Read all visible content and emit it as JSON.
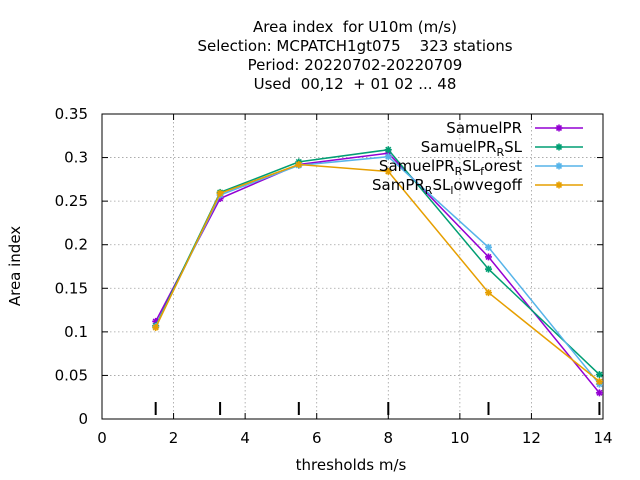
{
  "chart_data": {
    "type": "line",
    "title_lines": [
      "Area index  for U10m (m/s)",
      "Selection: MCPATCH1gt075    323 stations",
      "Period: 20220702-20220709",
      "Used  00,12  + 01 02 ... 48"
    ],
    "xlabel": "thresholds m/s",
    "ylabel": "Area index",
    "xlim": [
      0,
      14
    ],
    "ylim": [
      0,
      0.35
    ],
    "xticks": [
      0,
      2,
      4,
      6,
      8,
      10,
      12,
      14
    ],
    "yticks": [
      0,
      0.05,
      0.1,
      0.15,
      0.2,
      0.25,
      0.3,
      0.35
    ],
    "xtick_labels": [
      "0",
      "2",
      "4",
      "6",
      "8",
      "10",
      "12",
      "14"
    ],
    "ytick_labels": [
      "0",
      "0.05",
      "0.1",
      "0.15",
      "0.2",
      "0.25",
      "0.3",
      "0.35"
    ],
    "grid": true,
    "legend_position": "top-right",
    "threshold_markers": [
      1.5,
      3.3,
      5.5,
      8.0,
      10.8,
      13.9
    ],
    "series": [
      {
        "name": "SamuelPR",
        "legend_parts": [
          [
            "SamuelPR",
            ""
          ]
        ],
        "color": "#9400d3",
        "x": [
          1.5,
          3.3,
          5.5,
          8.0,
          10.8,
          13.9
        ],
        "y": [
          0.112,
          0.253,
          0.292,
          0.305,
          0.186,
          0.03
        ]
      },
      {
        "name": "SamuelPR_RSL",
        "legend_parts": [
          [
            "SamuelPR",
            ""
          ],
          [
            "R",
            "sub"
          ],
          [
            "SL",
            ""
          ]
        ],
        "color": "#009e73",
        "x": [
          1.5,
          3.3,
          5.5,
          8.0,
          10.8,
          13.9
        ],
        "y": [
          0.107,
          0.26,
          0.295,
          0.309,
          0.172,
          0.051
        ]
      },
      {
        "name": "SamuelPR_RSL_forest",
        "legend_parts": [
          [
            "SamuelPR",
            ""
          ],
          [
            "R",
            "sub"
          ],
          [
            "SL",
            ""
          ],
          [
            "f",
            "sub"
          ],
          [
            "orest",
            ""
          ]
        ],
        "color": "#56b4e9",
        "x": [
          1.5,
          3.3,
          5.5,
          8.0,
          10.8,
          13.9
        ],
        "y": [
          0.106,
          0.257,
          0.291,
          0.301,
          0.197,
          0.04
        ]
      },
      {
        "name": "SamPR_RSL_lowvegoff",
        "legend_parts": [
          [
            "SamPR",
            ""
          ],
          [
            "R",
            "sub"
          ],
          [
            "SL",
            ""
          ],
          [
            "l",
            "sub"
          ],
          [
            "owvegoff",
            ""
          ]
        ],
        "color": "#e69f00",
        "x": [
          1.5,
          3.3,
          5.5,
          8.0,
          10.8,
          13.9
        ],
        "y": [
          0.105,
          0.259,
          0.292,
          0.284,
          0.145,
          0.043
        ]
      }
    ]
  }
}
